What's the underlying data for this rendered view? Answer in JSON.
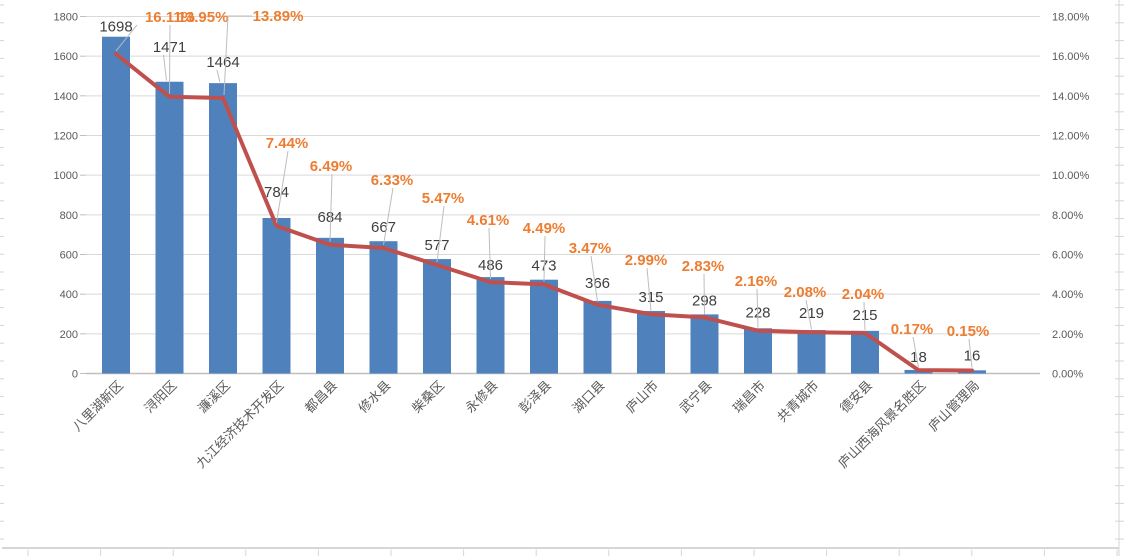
{
  "chart_data": {
    "type": "combo",
    "title": "",
    "legend": "none",
    "grid": true,
    "categories": [
      "八里湖新区",
      "浔阳区",
      "濂溪区",
      "九江经济技术开发区",
      "都昌县",
      "修水县",
      "柴桑区",
      "永修县",
      "彭泽县",
      "湖口县",
      "庐山市",
      "武宁县",
      "瑞昌市",
      "共青城市",
      "德安县",
      "庐山西海风景名胜区",
      "庐山管理局"
    ],
    "series": [
      {
        "name": "count-bars",
        "type": "bar",
        "axis": "left",
        "color": "#4f81bd",
        "values": [
          1698,
          1471,
          1464,
          784,
          684,
          667,
          577,
          486,
          473,
          366,
          315,
          298,
          228,
          219,
          215,
          18,
          16
        ],
        "value_labels": [
          "1698",
          "1471",
          "1464",
          "784",
          "684",
          "667",
          "577",
          "486",
          "473",
          "366",
          "315",
          "298",
          "228",
          "219",
          "215",
          "18",
          "16"
        ]
      },
      {
        "name": "percent-line",
        "type": "line",
        "axis": "right",
        "color": "#c0504d",
        "label_color": "#ed7d31",
        "values": [
          16.11,
          13.95,
          13.89,
          7.44,
          6.49,
          6.33,
          5.47,
          4.61,
          4.49,
          3.47,
          2.99,
          2.83,
          2.16,
          2.08,
          2.04,
          0.17,
          0.15
        ],
        "value_labels": [
          "16.11%",
          "13.95%",
          "13.89%",
          "7.44%",
          "6.49%",
          "6.33%",
          "5.47%",
          "4.61%",
          "4.49%",
          "3.47%",
          "2.99%",
          "2.83%",
          "2.16%",
          "2.08%",
          "2.04%",
          "0.17%",
          "0.15%"
        ]
      }
    ],
    "left_axis": {
      "min": 0,
      "max": 1800,
      "step": 200,
      "tick_labels": [
        "0",
        "200",
        "400",
        "600",
        "800",
        "1000",
        "1200",
        "1400",
        "1600",
        "1800"
      ]
    },
    "right_axis": {
      "min": 0,
      "max": 18,
      "step": 2,
      "tick_labels": [
        "0.00%",
        "2.00%",
        "4.00%",
        "6.00%",
        "8.00%",
        "10.00%",
        "12.00%",
        "14.00%",
        "16.00%",
        "18.00%"
      ]
    },
    "colors": {
      "bar": "#4f81bd",
      "line": "#c0504d",
      "percent_label": "#ed7d31",
      "value_label": "#3f3f3f",
      "axis_label": "#595959",
      "gridline": "#d9d9d9",
      "axis_line": "#bfbfbf",
      "leader": "#bdbdbd",
      "sheet_line": "#d6d6d6",
      "background": "#ffffff"
    }
  }
}
